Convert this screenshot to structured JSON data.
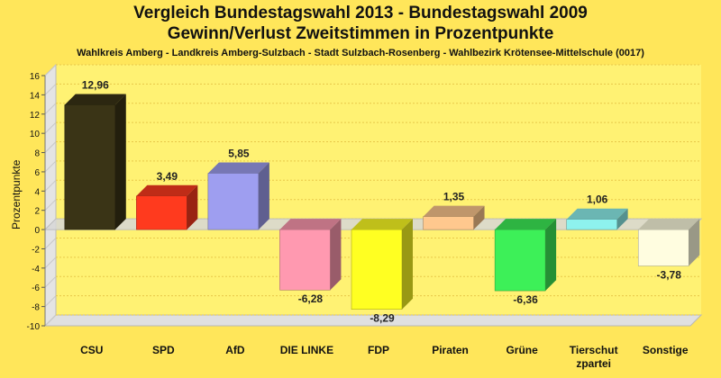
{
  "title": "Vergleich Bundestagswahl 2013 - Bundestagswahl 2009",
  "subtitle": "Gewinn/Verlust Zweitstimmen in Prozentpunkte",
  "caption": "Wahlkreis Amberg - Landkreis Amberg-Sulzbach - Stadt Sulzbach-Rosenberg - Wahlbezirk Krötensee-Mittelschule (0017)",
  "chart_data": {
    "type": "bar",
    "title": "Vergleich Bundestagswahl 2013 - Bundestagswahl 2009",
    "subtitle": "Gewinn/Verlust Zweitstimmen in Prozentpunkte",
    "xlabel": "",
    "ylabel": "Prozentpunkte",
    "ylim": [
      -10,
      16
    ],
    "yticks": [
      16,
      14,
      12,
      10,
      8,
      6,
      4,
      2,
      0,
      -2,
      -4,
      -6,
      -8,
      -10
    ],
    "grid": true,
    "categories": [
      "CSU",
      "SPD",
      "AfD",
      "DIE LINKE",
      "FDP",
      "Piraten",
      "Grüne",
      "Tierschutzpartei",
      "Sonstige"
    ],
    "category_lines": [
      [
        "CSU"
      ],
      [
        "SPD"
      ],
      [
        "AfD"
      ],
      [
        "DIE LINKE"
      ],
      [
        "FDP"
      ],
      [
        "Piraten"
      ],
      [
        "Grüne"
      ],
      [
        "Tierschut",
        "zpartei"
      ],
      [
        "Sonstige"
      ]
    ],
    "values": [
      12.96,
      3.49,
      5.85,
      -6.28,
      -8.29,
      1.35,
      -6.36,
      1.06,
      -3.78
    ],
    "value_labels": [
      "12,96",
      "3,49",
      "5,85",
      "-6,28",
      "-8,29",
      "1,35",
      "-6,36",
      "1,06",
      "-3,78"
    ],
    "colors": [
      "#3A3416",
      "#FF3A1E",
      "#9E9EF0",
      "#FF99B0",
      "#FFFF22",
      "#FFC88E",
      "#3DF058",
      "#8EF2EE",
      "#FFFDE0"
    ]
  }
}
